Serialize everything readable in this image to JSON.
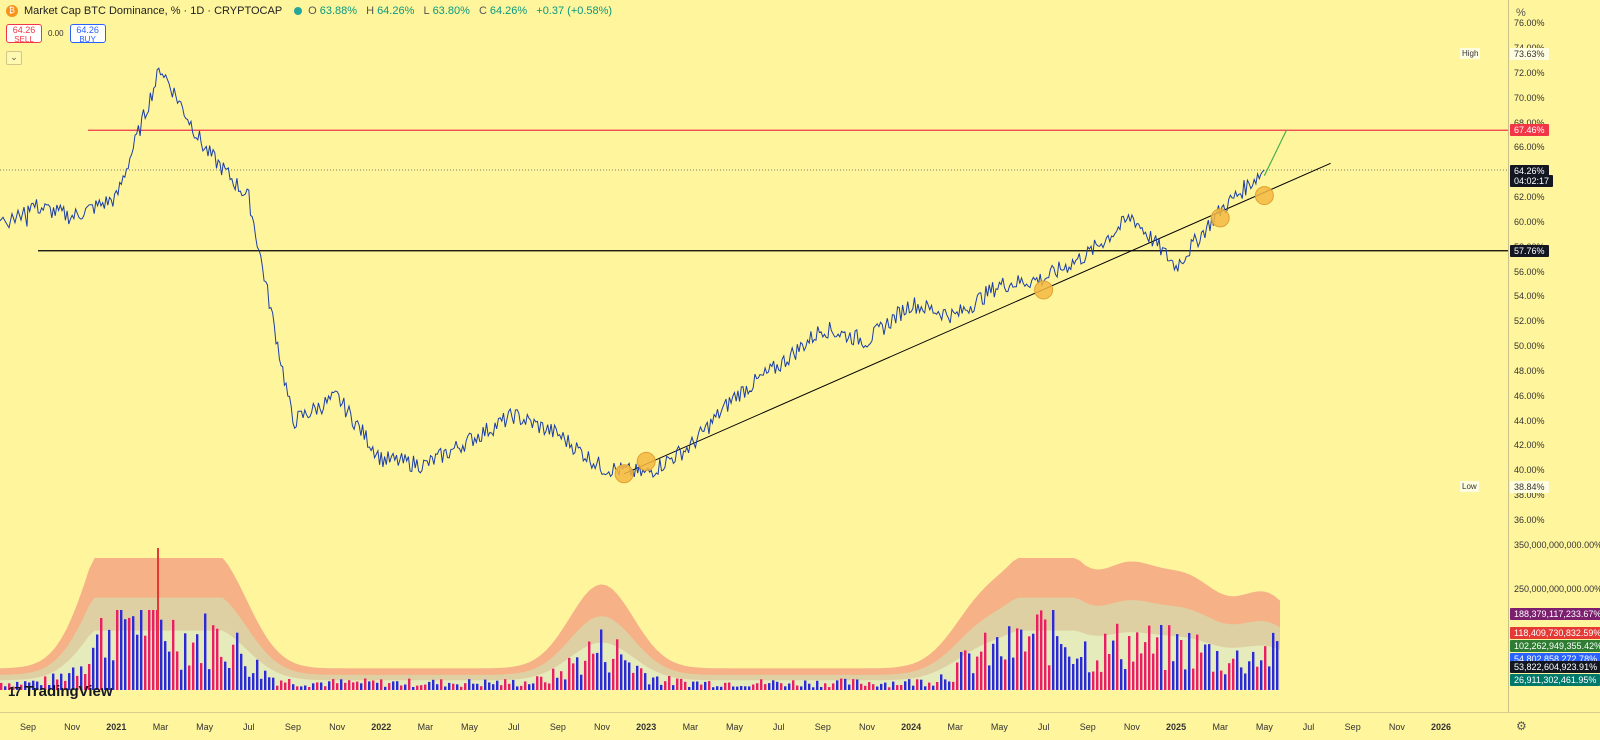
{
  "header": {
    "coin_icon": "bitcoin-icon",
    "title": "Market Cap BTC Dominance, % · 1D · CRYPTOCAP",
    "ohlc": {
      "o_label": "O",
      "o": "63.88%",
      "h_label": "H",
      "h": "64.26%",
      "l_label": "L",
      "l": "63.80%",
      "c_label": "C",
      "c": "64.26%",
      "change": "+0.37 (+0.58%)"
    }
  },
  "trade": {
    "sell_price": "64.26",
    "sell_label": "SELL",
    "spread": "0.00",
    "buy_price": "64.26",
    "buy_label": "BUY"
  },
  "price_axis": {
    "unit": "%",
    "ticks": [
      "76.00%",
      "74.00%",
      "72.00%",
      "70.00%",
      "68.00%",
      "66.00%",
      "62.00%",
      "60.00%",
      "58.00%",
      "56.00%",
      "54.00%",
      "52.00%",
      "50.00%",
      "48.00%",
      "46.00%",
      "44.00%",
      "42.00%",
      "40.00%",
      "38.00%",
      "36.00%"
    ],
    "high_label": "High",
    "high_value": "73.63%",
    "low_label": "Low",
    "low_value": "38.84%",
    "resistance_tag": "67.46%",
    "current_tag": "64.26%",
    "countdown": "04:02:17",
    "support_tag": "57.76%"
  },
  "volume_axis": {
    "ticks": [
      "350,000,000,000.00%",
      "250,000,000,000.00%"
    ],
    "tags": [
      {
        "value": "188,379,117,233.67%",
        "color": "#7b1f6e"
      },
      {
        "value": "118,409,730,832.59%",
        "color": "#e53935"
      },
      {
        "value": "102,262,949,355.42%",
        "color": "#2e7d32"
      },
      {
        "value": "54,802,858,272.78%",
        "color": "#2962ff"
      },
      {
        "value": "53,822,604,923.91%",
        "color": "#131722"
      },
      {
        "value": "26,911,302,461.95%",
        "color": "#00796b"
      }
    ]
  },
  "time_axis": {
    "labels": [
      "Sep",
      "Nov",
      "2021",
      "Mar",
      "May",
      "Jul",
      "Sep",
      "Nov",
      "2022",
      "Mar",
      "May",
      "Jul",
      "Sep",
      "Nov",
      "2023",
      "Mar",
      "May",
      "Jul",
      "Sep",
      "Nov",
      "2024",
      "Mar",
      "May",
      "Jul",
      "Sep",
      "Nov",
      "2025",
      "Mar",
      "May",
      "Jul",
      "Sep",
      "Nov",
      "2026"
    ],
    "settings_icon": "gear-icon"
  },
  "branding": {
    "logo_icon": "tradingview-logo-icon",
    "name": "TradingView"
  },
  "colors": {
    "background": "#fff59d",
    "series": "#1a3ea8",
    "resistance": "#f23645",
    "support": "#000000",
    "trendline": "#000000",
    "highlight": "#f5b942",
    "projection": "#4caf50"
  },
  "chart_data": {
    "type": "line",
    "ylim": [
      35,
      77
    ],
    "x": [
      "2020-09",
      "2020-11",
      "2021-01",
      "2021-03",
      "2021-05",
      "2021-07",
      "2021-09",
      "2021-11",
      "2022-01",
      "2022-03",
      "2022-05",
      "2022-07",
      "2022-09",
      "2022-11",
      "2023-01",
      "2023-03",
      "2023-05",
      "2023-07",
      "2023-09",
      "2023-11",
      "2024-01",
      "2024-03",
      "2024-05",
      "2024-07",
      "2024-09",
      "2024-11",
      "2025-01",
      "2025-03",
      "2025-05"
    ],
    "series": [
      {
        "values": [
          61.5,
          60.5,
          62,
          72.5,
          66,
          62,
          44,
          46,
          41,
          40.5,
          42.5,
          44.5,
          43,
          40.3,
          39.8,
          42,
          46,
          48.5,
          51.5,
          50.5,
          53.5,
          52.5,
          55,
          55.5,
          57.5,
          60.5,
          56.5,
          61,
          64.26
        ]
      }
    ],
    "horizontal_levels": [
      67.46,
      57.76
    ],
    "trendline": {
      "from": [
        "2022-12",
        39.8
      ],
      "to": [
        "2025-08",
        64.8
      ]
    },
    "highlighted_touches": [
      [
        "2022-12",
        39.8
      ],
      [
        "2023-01",
        40.8
      ],
      [
        "2024-07",
        54.6
      ],
      [
        "2025-03",
        60.4
      ],
      [
        "2025-05",
        62.2
      ]
    ],
    "projection": {
      "from": [
        "2025-05",
        63.8
      ],
      "to": [
        "2025-06",
        67.46
      ]
    }
  }
}
